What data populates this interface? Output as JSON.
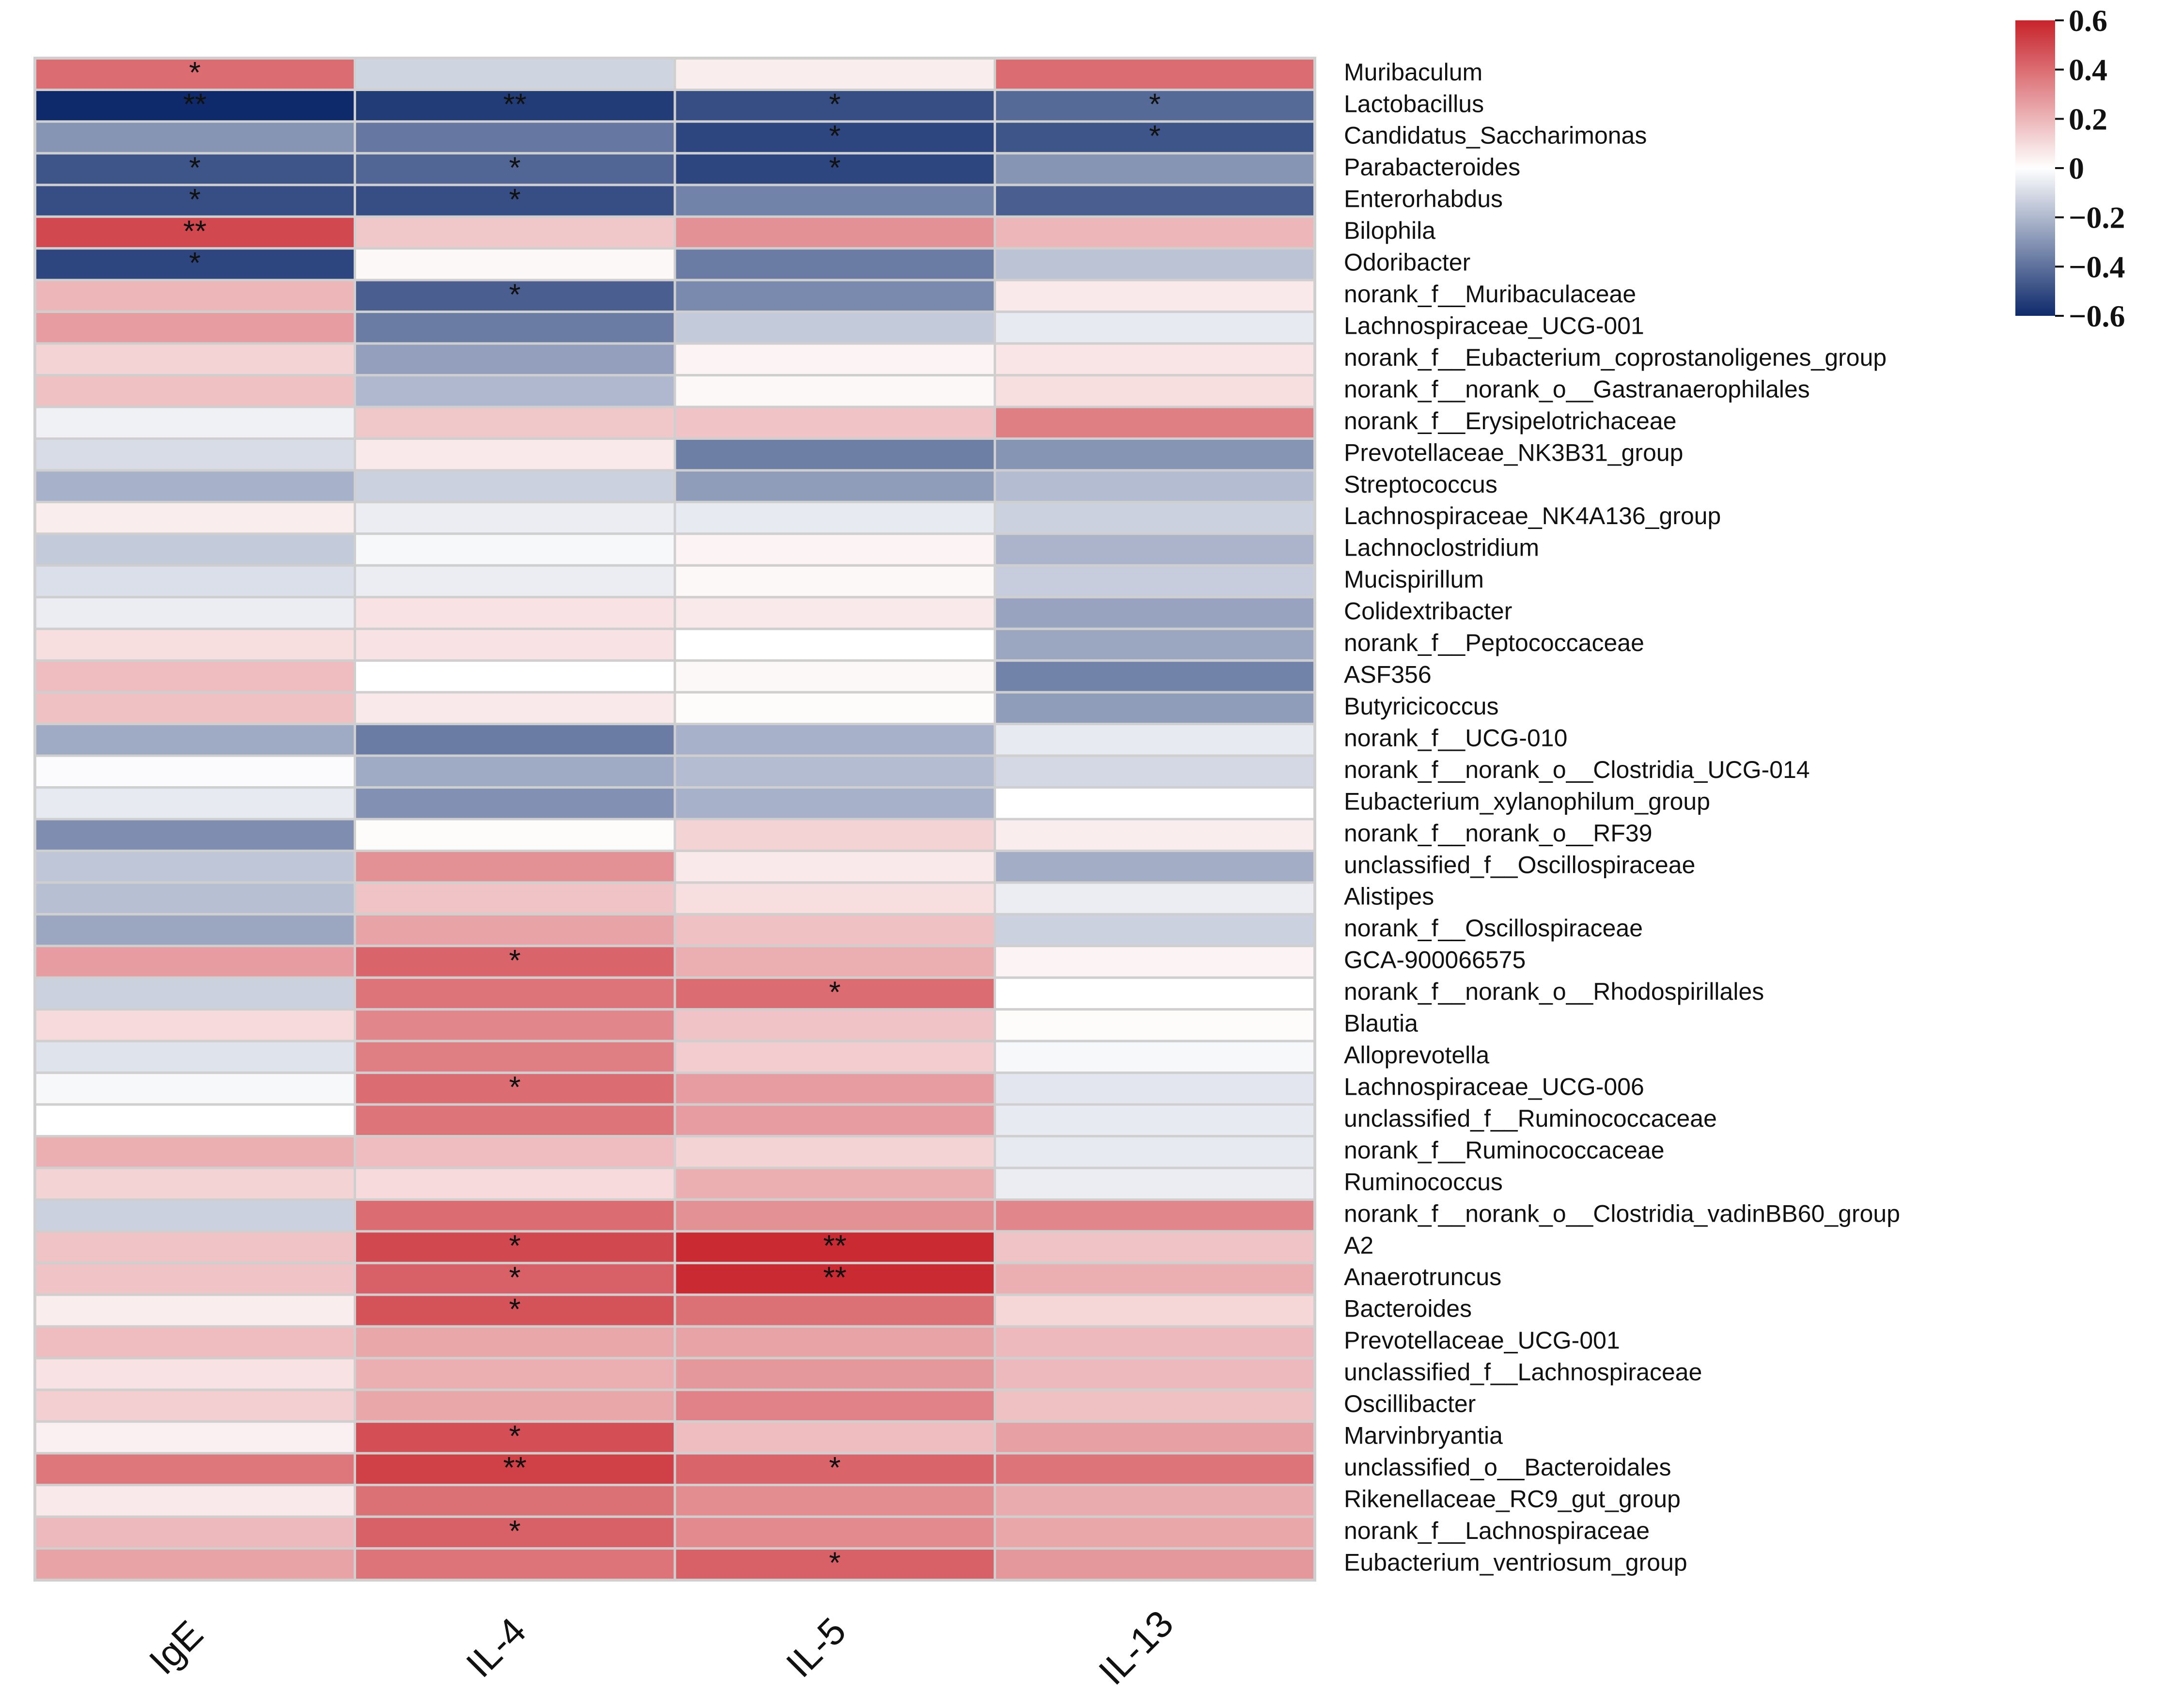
{
  "chart_data": {
    "type": "heatmap",
    "title": "",
    "columns": [
      "IgE",
      "IL-4",
      "IL-5",
      "IL-13"
    ],
    "rows": [
      "Muribaculum",
      "Lactobacillus",
      "Candidatus_Saccharimonas",
      "Parabacteroides",
      "Enterorhabdus",
      "Bilophila",
      "Odoribacter",
      "norank_f__Muribaculaceae",
      "Lachnospiraceae_UCG-001",
      "norank_f__Eubacterium_coprostanoligenes_group",
      "norank_f__norank_o__Gastranaerophilales",
      "norank_f__Erysipelotrichaceae",
      "Prevotellaceae_NK3B31_group",
      "Streptococcus",
      "Lachnospiraceae_NK4A136_group",
      "Lachnoclostridium",
      "Mucispirillum",
      "Colidextribacter",
      "norank_f__Peptococcaceae",
      "ASF356",
      "Butyricicoccus",
      "norank_f__UCG-010",
      "norank_f__norank_o__Clostridia_UCG-014",
      "Eubacterium_xylanophilum_group",
      "norank_f__norank_o__RF39",
      "unclassified_f__Oscillospiraceae",
      "Alistipes",
      "norank_f__Oscillospiraceae",
      "GCA-900066575",
      "norank_f__norank_o__Rhodospirillales",
      "Blautia",
      "Alloprevotella",
      "Lachnospiraceae_UCG-006",
      "unclassified_f__Ruminococcaceae",
      "norank_f__Ruminococcaceae",
      "Ruminococcus",
      "norank_f__norank_o__Clostridia_vadinBB60_group",
      "A2",
      "Anaerotruncus",
      "Bacteroides",
      "Prevotellaceae_UCG-001",
      "unclassified_f__Lachnospiraceae",
      "Oscillibacter",
      "Marvinbryantia",
      "unclassified_o__Bacteroidales",
      "Rikenellaceae_RC9_gut_group",
      "norank_f__Lachnospiraceae",
      "Eubacterium_ventriosum_group"
    ],
    "values": [
      [
        0.4,
        -0.12,
        0.05,
        0.4
      ],
      [
        -0.6,
        -0.55,
        -0.5,
        -0.42
      ],
      [
        -0.3,
        -0.38,
        -0.52,
        -0.48
      ],
      [
        -0.48,
        -0.43,
        -0.52,
        -0.3
      ],
      [
        -0.5,
        -0.5,
        -0.35,
        -0.45
      ],
      [
        0.5,
        0.15,
        0.3,
        0.2
      ],
      [
        -0.52,
        0.02,
        -0.37,
        -0.17
      ],
      [
        0.2,
        -0.45,
        -0.33,
        0.06
      ],
      [
        0.27,
        -0.37,
        -0.15,
        -0.06
      ],
      [
        0.12,
        -0.27,
        0.03,
        0.07
      ],
      [
        0.17,
        -0.2,
        0.02,
        0.09
      ],
      [
        -0.04,
        0.15,
        0.16,
        0.35
      ],
      [
        -0.1,
        0.06,
        -0.36,
        -0.3
      ],
      [
        -0.22,
        -0.13,
        -0.28,
        -0.19
      ],
      [
        0.05,
        -0.05,
        -0.06,
        -0.13
      ],
      [
        -0.15,
        -0.02,
        0.03,
        -0.21
      ],
      [
        -0.09,
        -0.05,
        0.02,
        -0.14
      ],
      [
        -0.05,
        0.08,
        0.06,
        -0.26
      ],
      [
        0.09,
        0.08,
        0.0,
        -0.25
      ],
      [
        0.18,
        0.0,
        0.02,
        -0.35
      ],
      [
        0.17,
        0.06,
        0.01,
        -0.28
      ],
      [
        -0.24,
        -0.37,
        -0.22,
        -0.06
      ],
      [
        -0.01,
        -0.24,
        -0.19,
        -0.11
      ],
      [
        -0.06,
        -0.31,
        -0.22,
        0.0
      ],
      [
        -0.32,
        0.01,
        0.12,
        0.05
      ],
      [
        -0.16,
        0.3,
        0.06,
        -0.23
      ],
      [
        -0.18,
        0.16,
        0.09,
        -0.05
      ],
      [
        -0.25,
        0.25,
        0.17,
        -0.13
      ],
      [
        0.27,
        0.42,
        0.22,
        0.03
      ],
      [
        -0.13,
        0.38,
        0.4,
        0.0
      ],
      [
        0.1,
        0.33,
        0.16,
        0.01
      ],
      [
        -0.08,
        0.35,
        0.14,
        -0.02
      ],
      [
        -0.02,
        0.4,
        0.27,
        -0.07
      ],
      [
        0.0,
        0.38,
        0.27,
        -0.06
      ],
      [
        0.22,
        0.18,
        0.12,
        -0.06
      ],
      [
        0.12,
        0.1,
        0.22,
        -0.05
      ],
      [
        -0.13,
        0.4,
        0.3,
        0.33
      ],
      [
        0.16,
        0.5,
        0.58,
        0.16
      ],
      [
        0.16,
        0.43,
        0.58,
        0.22
      ],
      [
        0.05,
        0.47,
        0.39,
        0.11
      ],
      [
        0.18,
        0.24,
        0.25,
        0.19
      ],
      [
        0.08,
        0.22,
        0.28,
        0.19
      ],
      [
        0.13,
        0.24,
        0.34,
        0.17
      ],
      [
        0.04,
        0.48,
        0.18,
        0.26
      ],
      [
        0.37,
        0.52,
        0.42,
        0.38
      ],
      [
        0.06,
        0.39,
        0.31,
        0.23
      ],
      [
        0.19,
        0.43,
        0.32,
        0.24
      ],
      [
        0.25,
        0.38,
        0.43,
        0.28
      ]
    ],
    "significance": [
      [
        "*",
        "",
        "",
        ""
      ],
      [
        "**",
        "**",
        "*",
        "*"
      ],
      [
        "",
        "",
        "*",
        "*"
      ],
      [
        "*",
        "*",
        "*",
        ""
      ],
      [
        "*",
        "*",
        "",
        ""
      ],
      [
        "**",
        "",
        "",
        ""
      ],
      [
        "*",
        "",
        "",
        ""
      ],
      [
        "",
        "*",
        "",
        ""
      ],
      [
        "",
        "",
        "",
        ""
      ],
      [
        "",
        "",
        "",
        ""
      ],
      [
        "",
        "",
        "",
        ""
      ],
      [
        "",
        "",
        "",
        ""
      ],
      [
        "",
        "",
        "",
        ""
      ],
      [
        "",
        "",
        "",
        ""
      ],
      [
        "",
        "",
        "",
        ""
      ],
      [
        "",
        "",
        "",
        ""
      ],
      [
        "",
        "",
        "",
        ""
      ],
      [
        "",
        "",
        "",
        ""
      ],
      [
        "",
        "",
        "",
        ""
      ],
      [
        "",
        "",
        "",
        ""
      ],
      [
        "",
        "",
        "",
        ""
      ],
      [
        "",
        "",
        "",
        ""
      ],
      [
        "",
        "",
        "",
        ""
      ],
      [
        "",
        "",
        "",
        ""
      ],
      [
        "",
        "",
        "",
        ""
      ],
      [
        "",
        "",
        "",
        ""
      ],
      [
        "",
        "",
        "",
        ""
      ],
      [
        "",
        "",
        "",
        ""
      ],
      [
        "",
        "*",
        "",
        ""
      ],
      [
        "",
        "",
        "*",
        ""
      ],
      [
        "",
        "",
        "",
        ""
      ],
      [
        "",
        "",
        "",
        ""
      ],
      [
        "",
        "*",
        "",
        ""
      ],
      [
        "",
        "",
        "",
        ""
      ],
      [
        "",
        "",
        "",
        ""
      ],
      [
        "",
        "",
        "",
        ""
      ],
      [
        "",
        "",
        "",
        ""
      ],
      [
        "",
        "*",
        "**",
        ""
      ],
      [
        "",
        "*",
        "**",
        ""
      ],
      [
        "",
        "*",
        "",
        ""
      ],
      [
        "",
        "",
        "",
        ""
      ],
      [
        "",
        "",
        "",
        ""
      ],
      [
        "",
        "",
        "",
        ""
      ],
      [
        "",
        "*",
        "",
        ""
      ],
      [
        "",
        "**",
        "*",
        ""
      ],
      [
        "",
        "",
        "",
        ""
      ],
      [
        "",
        "*",
        "",
        ""
      ],
      [
        "",
        "",
        "*",
        ""
      ]
    ],
    "colorbar": {
      "range": [
        -0.6,
        0.6
      ],
      "ticks": [
        0.6,
        0.4,
        0.2,
        0,
        -0.2,
        -0.4,
        -0.6
      ],
      "tick_labels": [
        "0.6",
        "0.4",
        "0.2",
        "0",
        "−0.2",
        "−0.4",
        "−0.6"
      ],
      "colors": {
        "low": "#0e2a6b",
        "mid": "#ffffff",
        "high": "#c8232b"
      },
      "placement": "top-right"
    }
  }
}
